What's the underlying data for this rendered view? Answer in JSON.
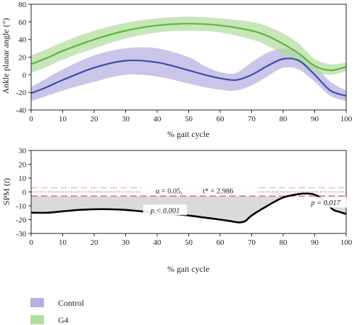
{
  "chart_data": [
    {
      "type": "line",
      "title": "",
      "xlabel": "% gait cycle",
      "ylabel": "Ankle planar angle (°)",
      "xlim": [
        0,
        100
      ],
      "ylim": [
        -40,
        80
      ],
      "xticks": [
        0,
        10,
        20,
        30,
        40,
        50,
        60,
        70,
        80,
        90,
        100
      ],
      "yticks": [
        -40,
        -20,
        0,
        20,
        40,
        60,
        80
      ],
      "series": [
        {
          "name": "Control",
          "color": "#3b4bb0",
          "band_color": "#b5aee0",
          "x": [
            0,
            5,
            10,
            20,
            30,
            40,
            50,
            55,
            60,
            65,
            70,
            75,
            80,
            85,
            90,
            95,
            100
          ],
          "mean": [
            -21,
            -14,
            -6,
            8,
            16,
            14,
            5,
            0,
            -4,
            -6,
            0,
            10,
            18,
            16,
            0,
            -18,
            -24
          ],
          "upper": [
            -14,
            -4,
            6,
            22,
            30,
            30,
            20,
            10,
            3,
            2,
            14,
            25,
            30,
            25,
            10,
            -8,
            -18
          ],
          "lower": [
            -30,
            -24,
            -18,
            -8,
            0,
            -2,
            -10,
            -14,
            -17,
            -18,
            -12,
            -2,
            8,
            6,
            -8,
            -24,
            -30
          ]
        },
        {
          "name": "G4",
          "color": "#5ab83a",
          "band_color": "#b3dda0",
          "x": [
            0,
            5,
            10,
            20,
            30,
            40,
            50,
            60,
            70,
            75,
            80,
            85,
            90,
            95,
            100
          ],
          "mean": [
            12,
            19,
            27,
            40,
            50,
            56,
            58,
            56,
            50,
            44,
            35,
            24,
            10,
            5,
            9
          ],
          "upper": [
            22,
            29,
            37,
            50,
            59,
            64,
            66,
            64,
            60,
            55,
            47,
            35,
            18,
            12,
            14
          ],
          "lower": [
            2,
            9,
            17,
            30,
            41,
            48,
            50,
            48,
            40,
            33,
            23,
            13,
            3,
            0,
            4
          ]
        }
      ],
      "legend": {
        "placement": "bottom-left",
        "entries": [
          "Control",
          "G4"
        ]
      }
    },
    {
      "type": "line",
      "title": "",
      "xlabel": "% gait cycle",
      "ylabel": "SPM (t)",
      "ylabel_main": "SPM (",
      "ylabel_italic": "t",
      "ylabel_end": ")",
      "xlim": [
        0,
        100
      ],
      "ylim": [
        -30,
        30
      ],
      "xticks": [
        0,
        10,
        20,
        30,
        40,
        50,
        60,
        70,
        80,
        90,
        100
      ],
      "yticks": [
        -30,
        -20,
        -10,
        0,
        10,
        20,
        30
      ],
      "series": [
        {
          "name": "SPM{t}",
          "color": "#000000",
          "x": [
            0,
            5,
            10,
            15,
            20,
            25,
            30,
            35,
            40,
            45,
            50,
            55,
            60,
            63,
            66,
            68,
            70,
            75,
            80,
            85,
            88,
            90,
            92,
            94,
            96,
            98,
            100
          ],
          "y": [
            -15,
            -15,
            -14,
            -13,
            -12.5,
            -12.5,
            -13,
            -14,
            -15,
            -16,
            -17,
            -18.5,
            -20,
            -21,
            -22,
            -21,
            -17,
            -10,
            -4,
            -1.5,
            -1.2,
            -2,
            -4.5,
            -9,
            -13,
            -14.5,
            -16
          ]
        }
      ],
      "threshold": {
        "value": 2.986,
        "color": "#e05060"
      },
      "clusters": [
        {
          "start": 0,
          "end": 82,
          "label": "p < 0.001"
        },
        {
          "start": 92,
          "end": 100,
          "label": "p = 0.017"
        }
      ],
      "annotations": {
        "alpha_label": "α = 0.05,",
        "tstar_label": "t* = 2.986",
        "cluster1_label": "p < 0.001",
        "cluster2_label": "p = 0.017"
      }
    }
  ]
}
